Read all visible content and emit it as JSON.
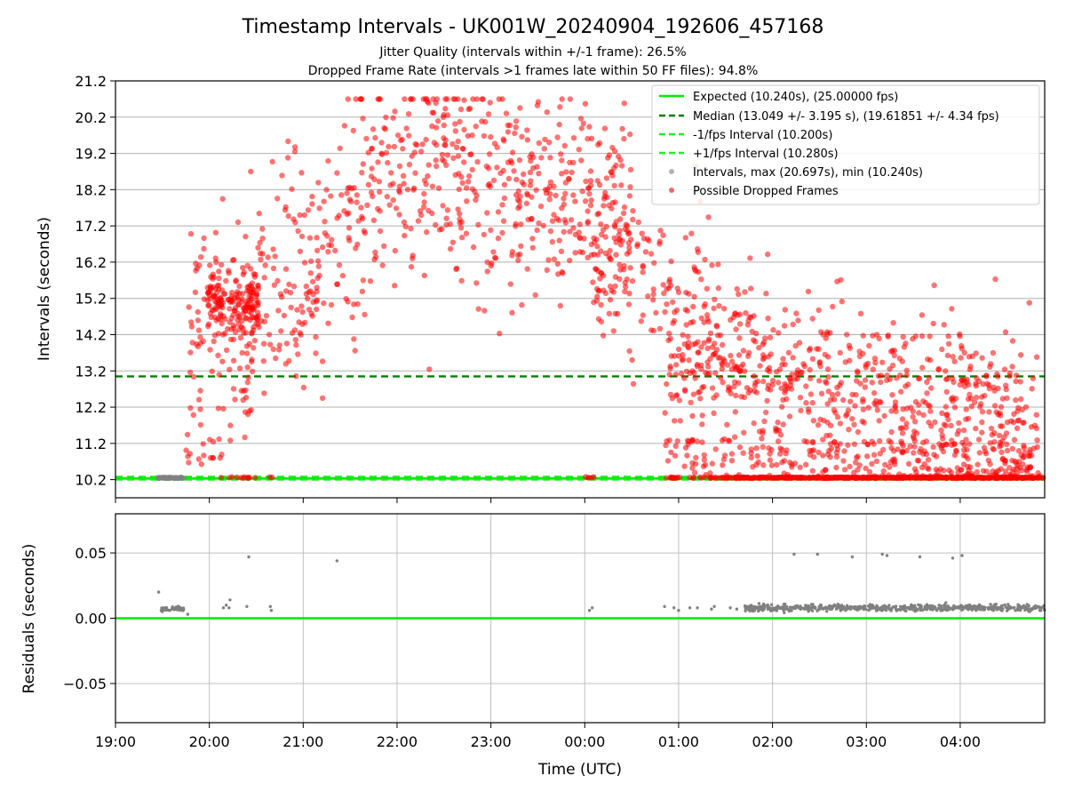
{
  "title": "Timestamp Intervals - UK001W_20240904_192606_457168",
  "subtitle_1": "Jitter Quality (intervals within +/-1 frame): 26.5%",
  "subtitle_2": "Dropped Frame Rate (intervals >1 frames late within 50 FF files): 94.8%",
  "chart_data": [
    {
      "type": "scatter",
      "panel": "intervals",
      "ylabel": "Intervals (seconds)",
      "xlabel": "",
      "ylim": [
        9.7,
        21.2
      ],
      "xlim_hours": [
        19.0,
        28.9
      ],
      "y_ticks": [
        "10.2",
        "11.2",
        "12.2",
        "13.2",
        "14.2",
        "15.2",
        "16.2",
        "17.2",
        "18.2",
        "19.2",
        "20.2",
        "21.2"
      ],
      "grid": true,
      "legend_position": "top-right",
      "legend": [
        "Expected (10.240s), (25.00000 fps)",
        "Median (13.049 +/- 3.195 s), (19.61851 +/- 4.34 fps)",
        "-1/fps Interval (10.200s)",
        "+1/fps Interval (10.280s)",
        "Intervals, max (20.697s), min (10.240s)",
        "Possible Dropped Frames"
      ],
      "lines": {
        "expected": 10.24,
        "median": 13.049,
        "minus_one_fps": 10.2,
        "plus_one_fps": 10.28
      },
      "colors": {
        "expected": "#00ee00",
        "median": "#008000",
        "fps_bounds": "#22ee22",
        "intervals": "#808080",
        "dropped": "#ff0000"
      },
      "series": [
        {
          "name": "Possible Dropped Frames",
          "note": "~1400 red points, dense clouds 19:45-04:50 UTC, values 10.24-20.7 s"
        },
        {
          "name": "Intervals, max (20.697s), min (10.240s)",
          "note": "grey points near 10.24 s, 19:28-19:42 UTC"
        }
      ]
    },
    {
      "type": "scatter",
      "panel": "residuals",
      "ylabel": "Residuals (seconds)",
      "xlabel": "Time (UTC)",
      "ylim": [
        -0.08,
        0.08
      ],
      "y_ticks": [
        "0.05",
        "0.00",
        "−0.05"
      ],
      "x_ticks": [
        "19:00",
        "20:00",
        "21:00",
        "22:00",
        "23:00",
        "00:00",
        "01:00",
        "02:00",
        "03:00",
        "04:00"
      ],
      "grid": true,
      "zero_line_color": "#00ee00",
      "point_color": "#808080",
      "outliers": [
        {
          "t": 19.46,
          "y": 0.02
        },
        {
          "t": 19.77,
          "y": 0.003
        },
        {
          "t": 20.22,
          "y": 0.014
        },
        {
          "t": 20.42,
          "y": 0.047
        },
        {
          "t": 21.36,
          "y": 0.044
        },
        {
          "t": 26.23,
          "y": 0.049
        },
        {
          "t": 26.48,
          "y": 0.049
        },
        {
          "t": 26.85,
          "y": 0.047
        },
        {
          "t": 27.17,
          "y": 0.049
        },
        {
          "t": 27.22,
          "y": 0.048
        },
        {
          "t": 27.57,
          "y": 0.047
        },
        {
          "t": 27.92,
          "y": 0.046
        },
        {
          "t": 28.02,
          "y": 0.048
        }
      ]
    }
  ]
}
